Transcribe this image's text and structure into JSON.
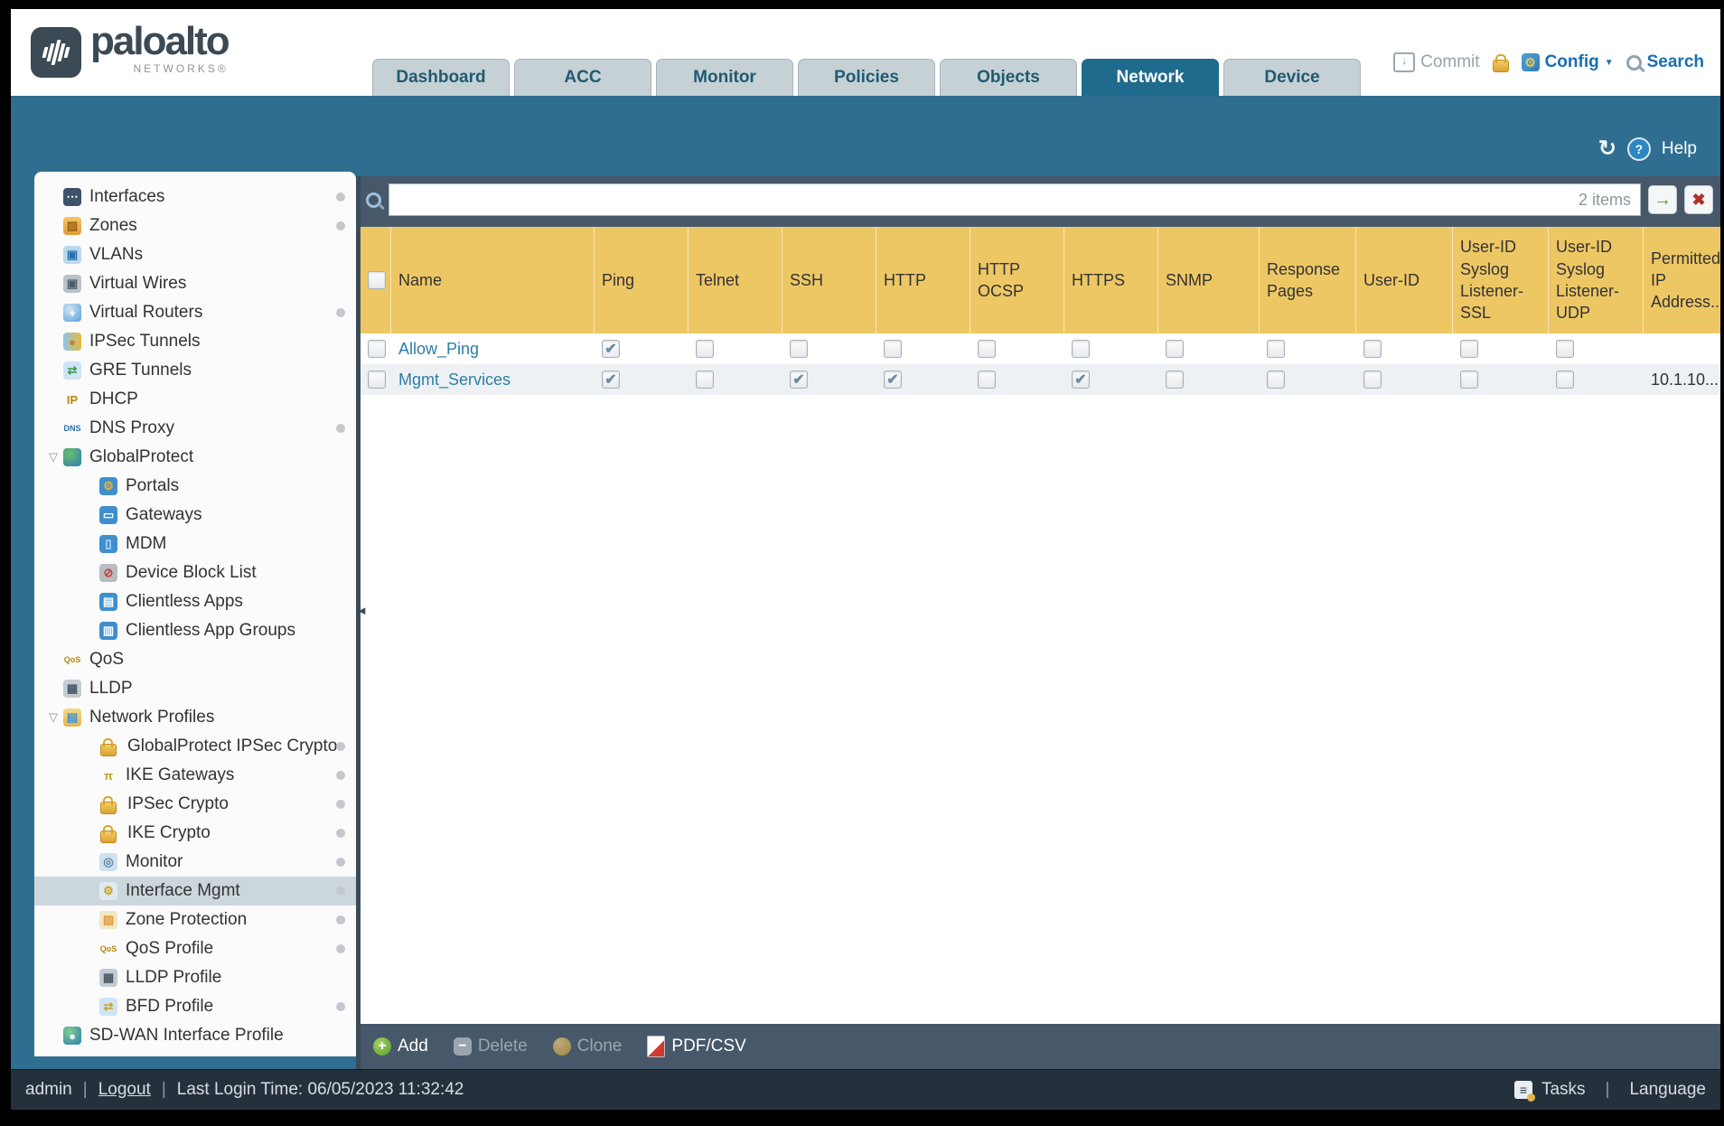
{
  "header": {
    "brand": "paloalto",
    "brand_sub": "NETWORKS®",
    "tabs": [
      {
        "label": "Dashboard",
        "active": false
      },
      {
        "label": "ACC",
        "active": false
      },
      {
        "label": "Monitor",
        "active": false
      },
      {
        "label": "Policies",
        "active": false
      },
      {
        "label": "Objects",
        "active": false
      },
      {
        "label": "Network",
        "active": true
      },
      {
        "label": "Device",
        "active": false
      }
    ],
    "actions": {
      "commit": "Commit",
      "config": "Config",
      "search": "Search"
    }
  },
  "band": {
    "help": "Help"
  },
  "sidebar": {
    "items": [
      {
        "label": "Interfaces",
        "icon": "interfaces-icon",
        "level": 0,
        "dot": true
      },
      {
        "label": "Zones",
        "icon": "zones-icon",
        "level": 0,
        "dot": true
      },
      {
        "label": "VLANs",
        "icon": "vlans-icon",
        "level": 0,
        "dot": false
      },
      {
        "label": "Virtual Wires",
        "icon": "virtual-wires-icon",
        "level": 0,
        "dot": false
      },
      {
        "label": "Virtual Routers",
        "icon": "virtual-routers-icon",
        "level": 0,
        "dot": true
      },
      {
        "label": "IPSec Tunnels",
        "icon": "ipsec-tunnels-icon",
        "level": 0,
        "dot": false
      },
      {
        "label": "GRE Tunnels",
        "icon": "gre-tunnels-icon",
        "level": 0,
        "dot": false
      },
      {
        "label": "DHCP",
        "icon": "dhcp-icon",
        "level": 0,
        "dot": false
      },
      {
        "label": "DNS Proxy",
        "icon": "dns-proxy-icon",
        "level": 0,
        "dot": true
      },
      {
        "label": "GlobalProtect",
        "icon": "globalprotect-icon",
        "level": 0,
        "expanded": true,
        "dot": false
      },
      {
        "label": "Portals",
        "icon": "portals-icon",
        "level": 1,
        "dot": false
      },
      {
        "label": "Gateways",
        "icon": "gateways-icon",
        "level": 1,
        "dot": false
      },
      {
        "label": "MDM",
        "icon": "mdm-icon",
        "level": 1,
        "dot": false
      },
      {
        "label": "Device Block List",
        "icon": "device-block-list-icon",
        "level": 1,
        "dot": false
      },
      {
        "label": "Clientless Apps",
        "icon": "clientless-apps-icon",
        "level": 1,
        "dot": false
      },
      {
        "label": "Clientless App Groups",
        "icon": "clientless-app-groups-icon",
        "level": 1,
        "dot": false
      },
      {
        "label": "QoS",
        "icon": "qos-icon",
        "level": 0,
        "dot": false
      },
      {
        "label": "LLDP",
        "icon": "lldp-icon",
        "level": 0,
        "dot": false
      },
      {
        "label": "Network Profiles",
        "icon": "network-profiles-icon",
        "level": 0,
        "expanded": true,
        "dot": false
      },
      {
        "label": "GlobalProtect IPSec Crypto",
        "icon": "lock-icon",
        "level": 1,
        "dot": true
      },
      {
        "label": "IKE Gateways",
        "icon": "ike-gateways-icon",
        "level": 1,
        "dot": true
      },
      {
        "label": "IPSec Crypto",
        "icon": "lock-icon",
        "level": 1,
        "dot": true
      },
      {
        "label": "IKE Crypto",
        "icon": "lock-icon",
        "level": 1,
        "dot": true
      },
      {
        "label": "Monitor",
        "icon": "monitor-icon",
        "level": 1,
        "dot": true
      },
      {
        "label": "Interface Mgmt",
        "icon": "interface-mgmt-icon",
        "level": 1,
        "selected": true,
        "dot": true
      },
      {
        "label": "Zone Protection",
        "icon": "zone-protection-icon",
        "level": 1,
        "dot": true
      },
      {
        "label": "QoS Profile",
        "icon": "qos-profile-icon",
        "level": 1,
        "dot": true
      },
      {
        "label": "LLDP Profile",
        "icon": "lldp-profile-icon",
        "level": 1,
        "dot": false
      },
      {
        "label": "BFD Profile",
        "icon": "bfd-profile-icon",
        "level": 1,
        "dot": true
      },
      {
        "label": "SD-WAN Interface Profile",
        "icon": "sdwan-icon",
        "level": 0,
        "dot": false
      }
    ]
  },
  "content": {
    "search": {
      "value": "",
      "count": "2 items"
    },
    "table": {
      "columns": [
        "Name",
        "Ping",
        "Telnet",
        "SSH",
        "HTTP",
        "HTTP OCSP",
        "HTTPS",
        "SNMP",
        "Response Pages",
        "User-ID",
        "User-ID Syslog Listener-SSL",
        "User-ID Syslog Listener-UDP",
        "Permitted IP Address..."
      ],
      "rows": [
        {
          "name": "Allow_Ping",
          "checks": [
            true,
            false,
            false,
            false,
            false,
            false,
            false,
            false,
            false,
            false,
            false
          ],
          "permitted_ip": ""
        },
        {
          "name": "Mgmt_Services",
          "checks": [
            true,
            false,
            true,
            true,
            false,
            true,
            false,
            false,
            false,
            false,
            false
          ],
          "permitted_ip": "10.1.10..."
        }
      ]
    },
    "toolbar": [
      {
        "label": "Add",
        "icon": "add-icon",
        "enabled": true
      },
      {
        "label": "Delete",
        "icon": "delete-icon",
        "enabled": false
      },
      {
        "label": "Clone",
        "icon": "clone-icon",
        "enabled": false
      },
      {
        "label": "PDF/CSV",
        "icon": "pdf-csv-icon",
        "enabled": true
      }
    ]
  },
  "footer": {
    "user": "admin",
    "logout": "Logout",
    "last_login": "Last Login Time: 06/05/2023 11:32:42",
    "tasks": "Tasks",
    "language": "Language"
  }
}
